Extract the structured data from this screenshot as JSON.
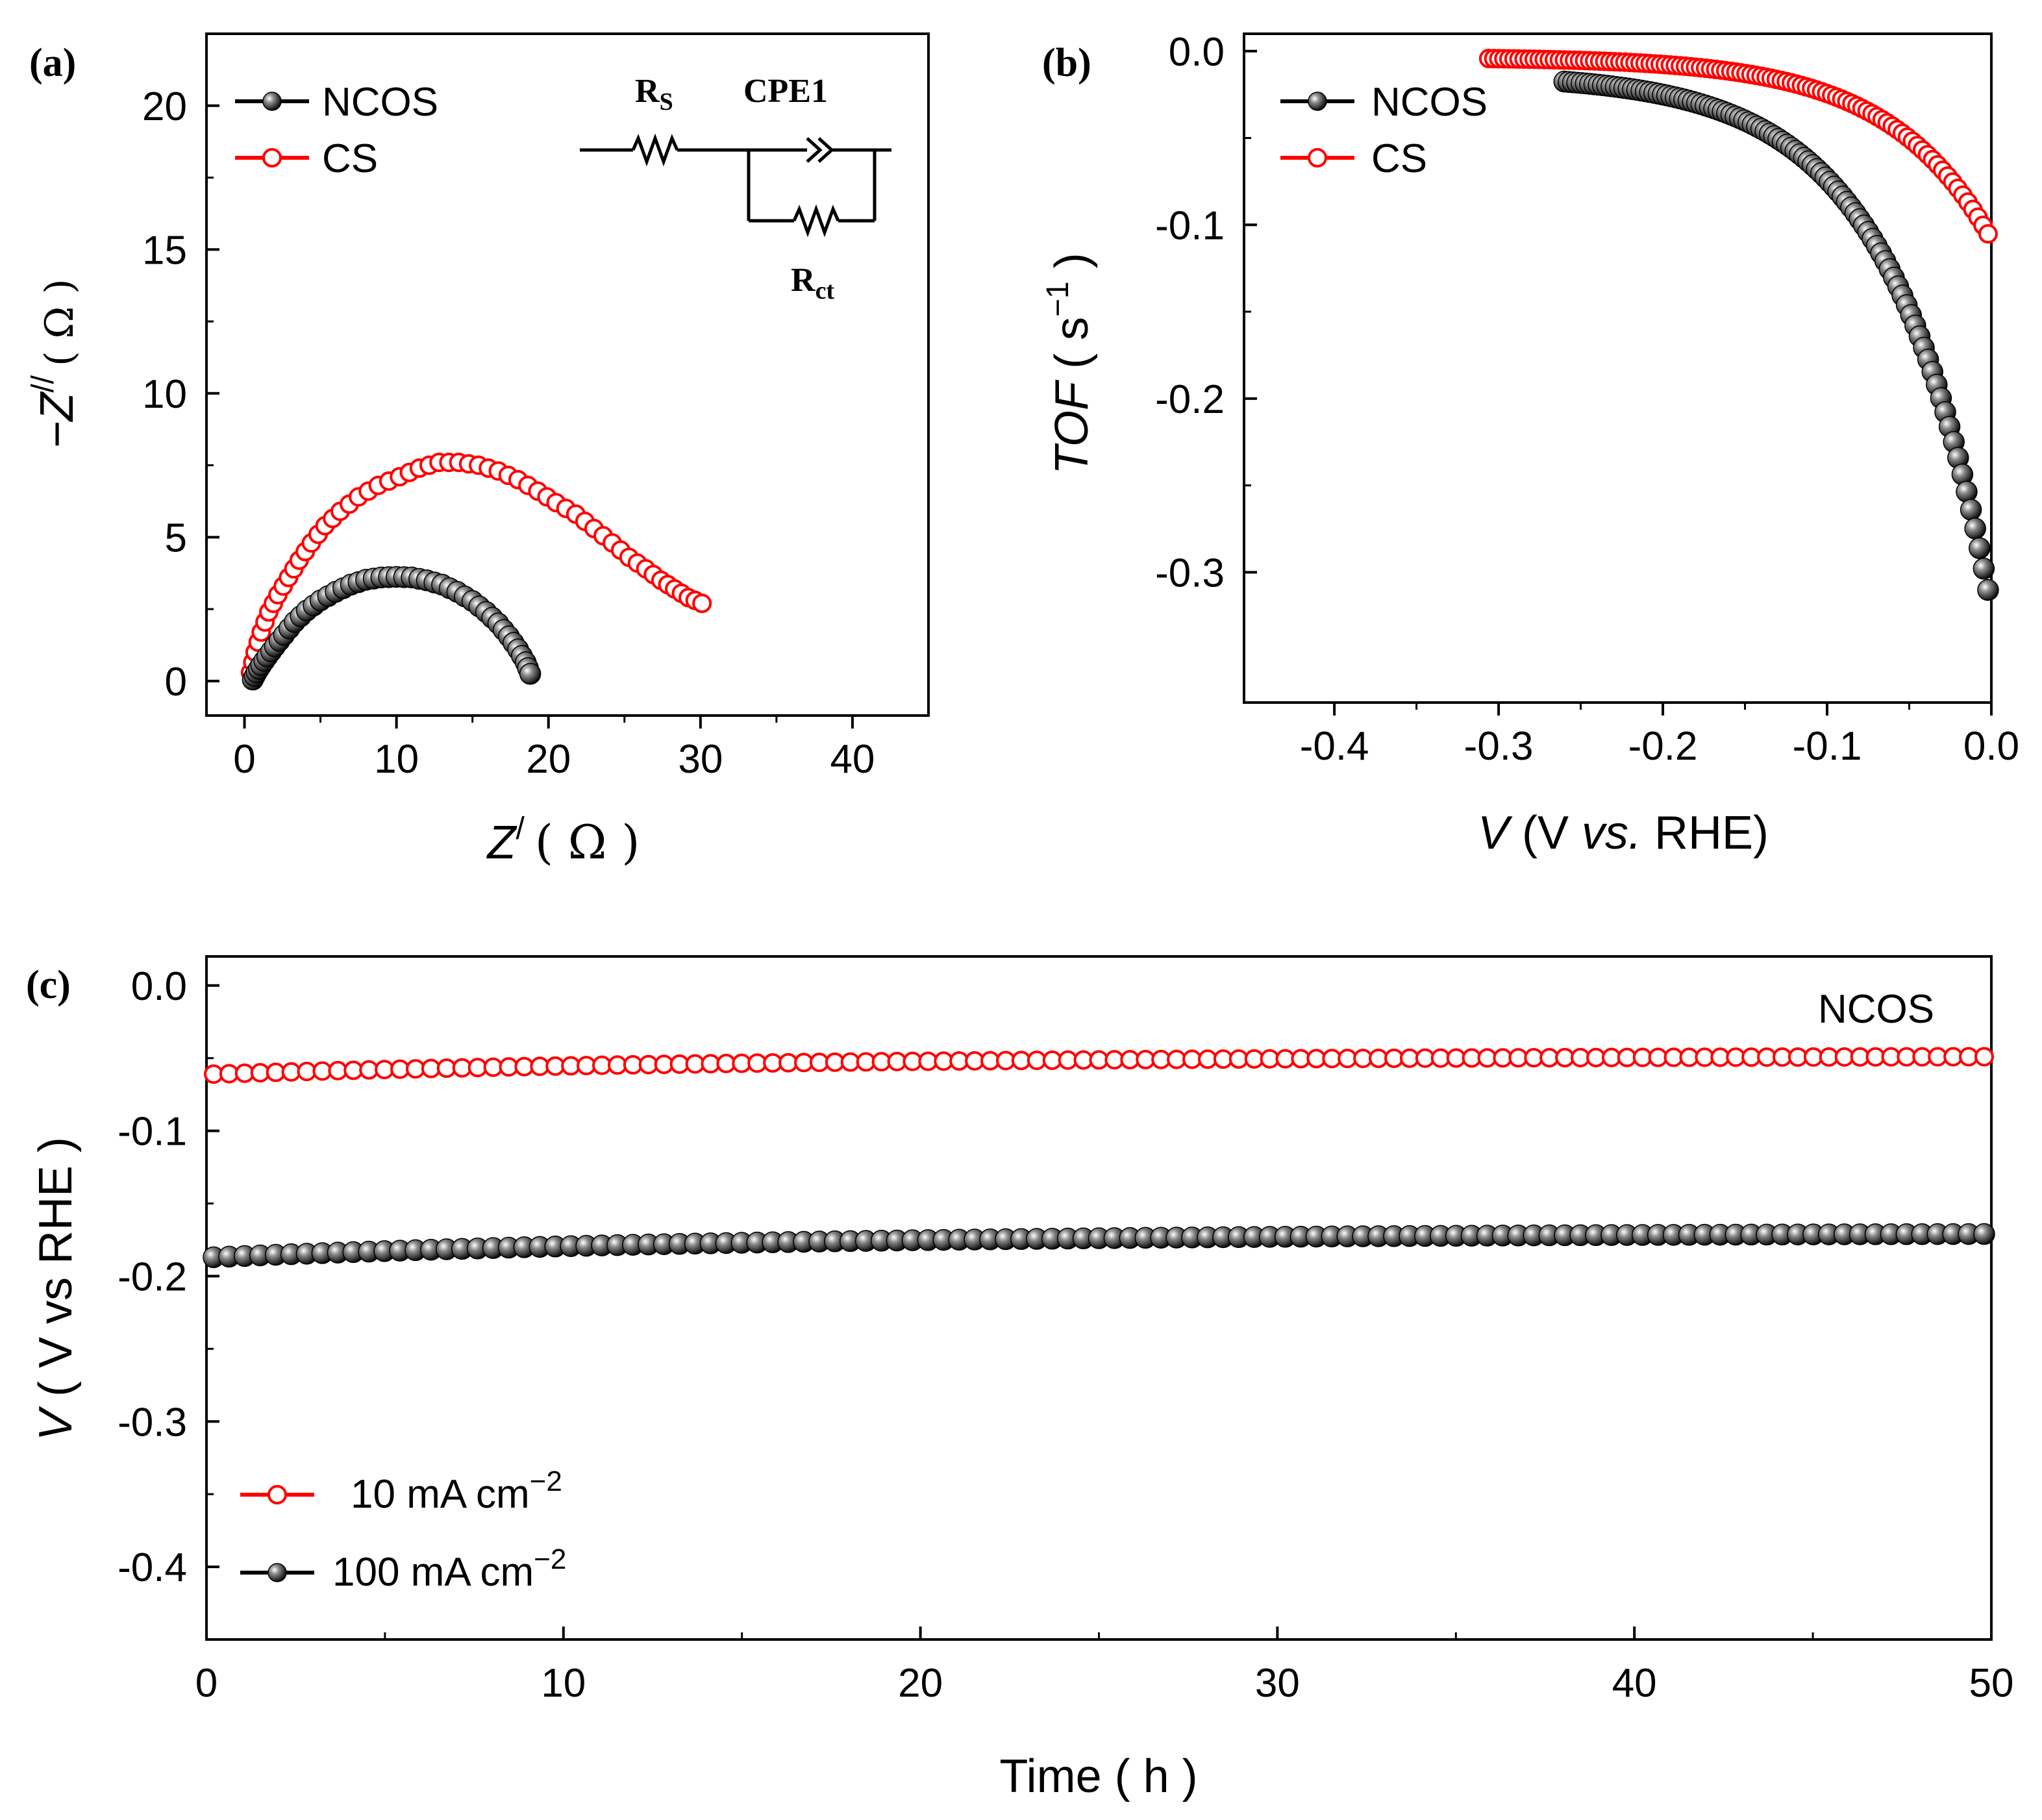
{
  "chart_data": [
    {
      "id": "a",
      "type": "scatter",
      "panel_label": "(a)",
      "xlabel": "Z/ ( Ω )",
      "ylabel": "−Z// ( Ω )",
      "xlim": [
        -2.5,
        45
      ],
      "ylim": [
        -1.2,
        22.5
      ],
      "xticks": [
        0,
        10,
        20,
        30,
        40
      ],
      "yticks": [
        0,
        5,
        10,
        15,
        20
      ],
      "legend_position": "top-left",
      "inset_circuit": {
        "labels": [
          "RS",
          "CPE1",
          "Rct"
        ]
      },
      "series": [
        {
          "name": "NCOS",
          "color": "#000000",
          "marker": "filled-sphere",
          "x": [
            0.55,
            0.8,
            1.1,
            1.5,
            2.0,
            2.6,
            3.3,
            4.1,
            5.0,
            6.0,
            7.0,
            8.0,
            9.0,
            10.0,
            11.0,
            12.0,
            13.0,
            14.0,
            15.0,
            15.9,
            16.7,
            17.4,
            18.0,
            18.5,
            18.8
          ],
          "y": [
            0.05,
            0.3,
            0.55,
            0.85,
            1.2,
            1.6,
            2.05,
            2.45,
            2.8,
            3.1,
            3.35,
            3.52,
            3.6,
            3.62,
            3.6,
            3.5,
            3.35,
            3.1,
            2.78,
            2.4,
            2.0,
            1.55,
            1.1,
            0.65,
            0.25
          ]
        },
        {
          "name": "CS",
          "color": "#ff0000",
          "marker": "open-circle",
          "x": [
            0.4,
            0.7,
            1.1,
            1.6,
            2.2,
            2.9,
            3.6,
            4.4,
            5.3,
            6.3,
            7.5,
            8.8,
            10.2,
            11.5,
            12.8,
            14.1,
            15.4,
            16.7,
            18.0,
            19.3,
            20.5,
            21.8,
            23.0,
            24.2,
            25.3,
            26.4,
            27.4,
            28.3,
            29.2,
            30.1
          ],
          "y": [
            0.3,
            1.0,
            1.7,
            2.4,
            3.0,
            3.6,
            4.2,
            4.8,
            5.4,
            5.9,
            6.4,
            6.8,
            7.1,
            7.4,
            7.6,
            7.6,
            7.5,
            7.3,
            7.0,
            6.6,
            6.2,
            5.8,
            5.3,
            4.8,
            4.3,
            3.9,
            3.5,
            3.2,
            2.9,
            2.7
          ]
        }
      ]
    },
    {
      "id": "b",
      "type": "scatter",
      "panel_label": "(b)",
      "xlabel": "V (V vs. RHE)",
      "ylabel": "TOF ( s−1 )",
      "xlim": [
        -0.455,
        0.0
      ],
      "ylim": [
        -0.375,
        0.01
      ],
      "xticks": [
        -0.4,
        -0.3,
        -0.2,
        -0.1,
        0.0
      ],
      "xtick_labels": [
        "-0.4",
        "-0.3",
        "-0.2",
        "-0.1",
        "0.0"
      ],
      "yticks": [
        0.0,
        -0.1,
        -0.2,
        -0.3
      ],
      "ytick_labels": [
        "0.0",
        "-0.1",
        "-0.2",
        "-0.3"
      ],
      "legend_position": "top-left",
      "series": [
        {
          "name": "NCOS",
          "color": "#000000",
          "marker": "filled-sphere",
          "x_range": [
            -0.26,
            -0.002
          ],
          "points": 100,
          "curve": {
            "kind": "exp_decay",
            "a": -0.013,
            "b": -0.307,
            "k": 0.0617
          }
        },
        {
          "name": "CS",
          "color": "#ff0000",
          "marker": "open-circle",
          "x_range": [
            -0.306,
            -0.002
          ],
          "points": 100,
          "curve": {
            "kind": "exp_decay",
            "a": -0.0035,
            "b": -0.105,
            "k": 0.062
          }
        }
      ]
    },
    {
      "id": "c",
      "type": "scatter",
      "panel_label": "(c)",
      "annotation": "NCOS",
      "xlabel": "Time ( h )",
      "ylabel": "V ( V vs RHE )",
      "xlim": [
        0,
        50
      ],
      "ylim": [
        -0.45,
        0.02
      ],
      "xticks": [
        0,
        10,
        20,
        30,
        40,
        50
      ],
      "yticks": [
        0.0,
        -0.1,
        -0.2,
        -0.3,
        -0.4
      ],
      "ytick_labels": [
        "0.0",
        "-0.1",
        "-0.2",
        "-0.3",
        "-0.4"
      ],
      "legend_position": "bottom-left",
      "series": [
        {
          "name": "10 mA cm−2",
          "color": "#ff0000",
          "marker": "open-circle",
          "t_range": [
            0.2,
            49.8
          ],
          "points": 115,
          "curve": {
            "start": -0.061,
            "end": -0.049
          }
        },
        {
          "name": "100 mA cm−2",
          "color": "#000000",
          "marker": "filled-sphere",
          "t_range": [
            0.2,
            49.8
          ],
          "points": 115,
          "curve": {
            "start": -0.187,
            "end": -0.171
          }
        }
      ]
    }
  ],
  "legends": {
    "a": [
      "NCOS",
      "CS"
    ],
    "b": [
      "NCOS",
      "CS"
    ],
    "c": [
      "10 mA cm",
      "100 mA cm"
    ],
    "c_sup": [
      "−2",
      "−2"
    ]
  },
  "labels": {
    "a_x_main": "Z",
    "a_x_sup": "/",
    "a_x_unit": "( Ω )",
    "a_y_main": "−Z",
    "a_y_sup": "//",
    "a_y_unit": "( Ω )",
    "b_y_main": "TOF",
    "b_y_unit": " ( s",
    "b_y_sup": "−1",
    "b_y_close": " )",
    "b_x_main": "V",
    "b_x_unit": " (V ",
    "b_x_vs": "vs.",
    "b_x_rest": " RHE)",
    "c_y_main": "V",
    "c_y_rest": " ( V vs RHE )",
    "c_x": "Time ( h )",
    "circuit_rs": "R",
    "circuit_rs_sub": "S",
    "circuit_cpe": "CPE1",
    "circuit_rct": "R",
    "circuit_rct_sub": "ct"
  },
  "colors": {
    "ncos": "#000000",
    "cs": "#ff0000"
  }
}
